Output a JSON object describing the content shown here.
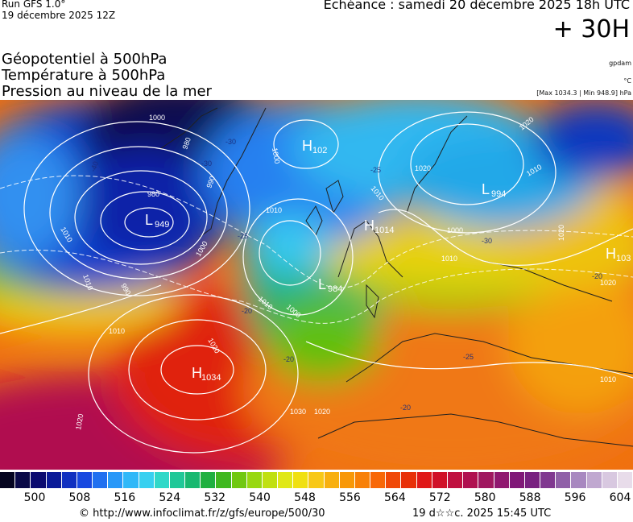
{
  "header": {
    "run_model": "Run GFS 1.0°",
    "run_date": "19 décembre 2025 12Z",
    "valid_time": "Echéance : samedi 20 décembre 2025 18h UTC",
    "lead_time": "+ 30H"
  },
  "titles": {
    "line1": "Géopotentiel à 500hPa",
    "line2": "Température à 500hPa",
    "line3": "Pression au niveau de la mer"
  },
  "units": {
    "geopotential": "gpdam",
    "temperature": "°C",
    "extrema": "[Max 1034.3 | Min 948.9] hPa"
  },
  "pressure_centers": [
    {
      "type": "L",
      "value": "949"
    },
    {
      "type": "L",
      "value": "984"
    },
    {
      "type": "H",
      "value": "1034"
    },
    {
      "type": "H",
      "value": "1014"
    },
    {
      "type": "H",
      "value": "102"
    },
    {
      "type": "L",
      "value": "994"
    },
    {
      "type": "H",
      "value": "103"
    }
  ],
  "isobar_labels": [
    "1000",
    "980",
    "990",
    "980",
    "1010",
    "1010",
    "1000",
    "1010",
    "1010",
    "1000",
    "1020",
    "1030",
    "1020",
    "1020",
    "1010",
    "1000",
    "1010",
    "1020",
    "1020",
    "1020",
    "1010",
    "990",
    "1010",
    "1010",
    "1000",
    "1020"
  ],
  "temperature_labels": [
    "-40",
    "-30",
    "-30",
    "-25",
    "-25",
    "-20",
    "-20",
    "-30",
    "-20",
    "-20",
    "-25"
  ],
  "colorbar": {
    "colors": [
      "#050520",
      "#0a0a48",
      "#0b0b70",
      "#0a1a98",
      "#1030c0",
      "#1848e0",
      "#2070f0",
      "#2898f8",
      "#30b8f8",
      "#38d0f0",
      "#30d8c8",
      "#20c898",
      "#18b870",
      "#20b040",
      "#40b820",
      "#70c810",
      "#98d810",
      "#c0e010",
      "#e0e818",
      "#f0e010",
      "#f8c818",
      "#f8b010",
      "#f89808",
      "#f88008",
      "#f86808",
      "#f04808",
      "#e83008",
      "#e01818",
      "#d01028",
      "#c01040",
      "#b01050",
      "#a01860",
      "#901870",
      "#801878",
      "#782080",
      "#803890",
      "#9060a8",
      "#a888c0",
      "#c0a8d0",
      "#d8c8e0",
      "#e8dcea"
    ],
    "labels": [
      "500",
      "508",
      "516",
      "524",
      "532",
      "540",
      "548",
      "556",
      "564",
      "572",
      "580",
      "588",
      "596",
      "604"
    ]
  },
  "footer": {
    "source": "© http://www.infoclimat.fr/z/gfs/europe/500/30",
    "updated": "19 d☆☆c. 2025 15:45 UTC"
  }
}
